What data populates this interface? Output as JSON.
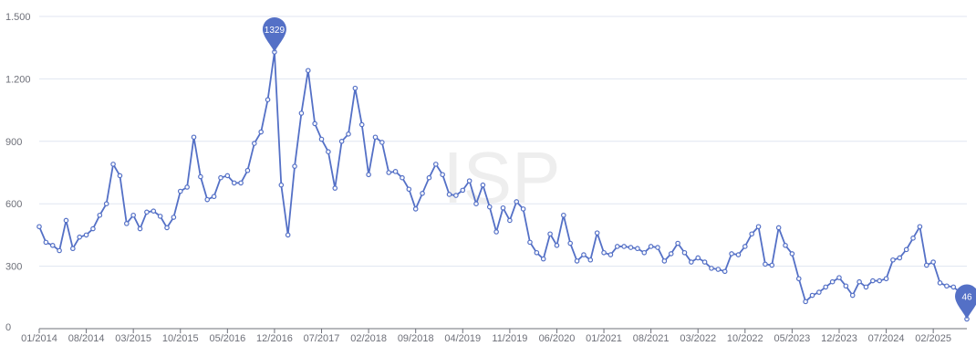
{
  "watermark": "ISP",
  "chart_data": {
    "type": "line",
    "x": [
      "01/2014",
      "02/2014",
      "03/2014",
      "04/2014",
      "05/2014",
      "06/2014",
      "07/2014",
      "08/2014",
      "09/2014",
      "10/2014",
      "11/2014",
      "12/2014",
      "01/2015",
      "02/2015",
      "03/2015",
      "04/2015",
      "05/2015",
      "06/2015",
      "07/2015",
      "08/2015",
      "09/2015",
      "10/2015",
      "11/2015",
      "12/2015",
      "01/2016",
      "02/2016",
      "03/2016",
      "04/2016",
      "05/2016",
      "06/2016",
      "07/2016",
      "08/2016",
      "09/2016",
      "10/2016",
      "11/2016",
      "12/2016",
      "01/2017",
      "02/2017",
      "03/2017",
      "04/2017",
      "05/2017",
      "06/2017",
      "07/2017",
      "08/2017",
      "09/2017",
      "10/2017",
      "11/2017",
      "12/2017",
      "01/2018",
      "02/2018",
      "03/2018",
      "04/2018",
      "05/2018",
      "06/2018",
      "07/2018",
      "08/2018",
      "09/2018",
      "10/2018",
      "11/2018",
      "12/2018",
      "01/2019",
      "02/2019",
      "03/2019",
      "04/2019",
      "05/2019",
      "06/2019",
      "07/2019",
      "08/2019",
      "09/2019",
      "10/2019",
      "11/2019",
      "12/2019",
      "01/2020",
      "02/2020",
      "03/2020",
      "04/2020",
      "05/2020",
      "06/2020",
      "07/2020",
      "08/2020",
      "09/2020",
      "10/2020",
      "11/2020",
      "12/2020",
      "01/2021",
      "02/2021",
      "03/2021",
      "04/2021",
      "05/2021",
      "06/2021",
      "07/2021",
      "08/2021",
      "09/2021",
      "10/2021",
      "11/2021",
      "12/2021",
      "01/2022",
      "02/2022",
      "03/2022",
      "04/2022",
      "05/2022",
      "06/2022",
      "07/2022",
      "08/2022",
      "09/2022",
      "10/2022",
      "11/2022",
      "12/2022",
      "01/2023",
      "02/2023",
      "03/2023",
      "04/2023",
      "05/2023",
      "06/2023",
      "07/2023",
      "08/2023",
      "09/2023",
      "10/2023",
      "11/2023",
      "12/2023",
      "01/2024",
      "02/2024",
      "03/2024",
      "04/2024",
      "05/2024",
      "06/2024",
      "07/2024",
      "08/2024",
      "09/2024",
      "10/2024",
      "11/2024",
      "12/2024",
      "01/2025",
      "02/2025",
      "03/2025",
      "04/2025",
      "05/2025",
      "06/2025",
      "07/2025"
    ],
    "series": [
      {
        "color": "#5470c6",
        "values": [
          490,
          415,
          400,
          375,
          520,
          385,
          440,
          450,
          480,
          545,
          600,
          790,
          735,
          505,
          545,
          480,
          560,
          565,
          540,
          485,
          535,
          660,
          680,
          920,
          730,
          620,
          635,
          725,
          735,
          700,
          700,
          760,
          890,
          945,
          1100,
          1329,
          690,
          450,
          780,
          1035,
          1240,
          985,
          910,
          850,
          675,
          900,
          935,
          1155,
          980,
          740,
          920,
          895,
          750,
          755,
          725,
          670,
          575,
          650,
          725,
          790,
          740,
          645,
          640,
          665,
          710,
          600,
          690,
          585,
          465,
          580,
          520,
          610,
          575,
          415,
          365,
          335,
          455,
          400,
          545,
          410,
          325,
          355,
          330,
          460,
          365,
          355,
          395,
          395,
          390,
          385,
          365,
          395,
          390,
          325,
          360,
          410,
          365,
          320,
          340,
          320,
          290,
          285,
          275,
          360,
          355,
          395,
          455,
          490,
          310,
          305,
          485,
          400,
          360,
          240,
          130,
          160,
          175,
          200,
          225,
          245,
          205,
          160,
          225,
          200,
          230,
          230,
          240,
          330,
          340,
          380,
          435,
          490,
          305,
          320,
          220,
          205,
          200,
          175,
          46
        ]
      }
    ],
    "ylim": [
      0,
      1500
    ],
    "yticks": [
      0,
      300,
      600,
      900,
      1200,
      1500
    ],
    "ytick_labels": [
      "0",
      "300",
      "600",
      "900",
      "1.200",
      "1.500"
    ],
    "xtick_labels": [
      "01/2014",
      "08/2014",
      "03/2015",
      "10/2015",
      "05/2016",
      "12/2016",
      "07/2017",
      "02/2018",
      "09/2018",
      "04/2019",
      "11/2019",
      "06/2020",
      "01/2021",
      "08/2021",
      "03/2022",
      "10/2022",
      "05/2023",
      "12/2023",
      "07/2024",
      "02/2025"
    ],
    "markers": [
      {
        "kind": "max",
        "label": "1329",
        "value": 1329
      },
      {
        "kind": "min",
        "label": "46",
        "value": 46
      }
    ],
    "grid": true,
    "legend": "none"
  }
}
